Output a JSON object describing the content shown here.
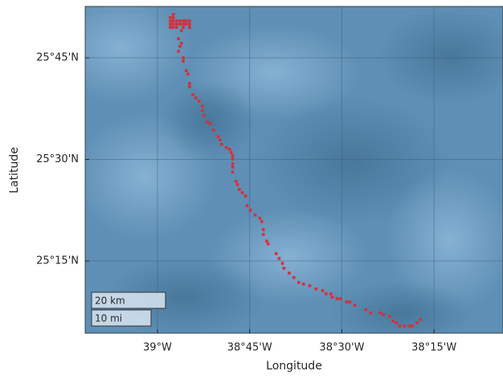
{
  "chart_data": {
    "type": "scatter",
    "xlabel": "Longitude",
    "ylabel": "Latitude",
    "xlim": [
      -39.196,
      -38.063
    ],
    "ylim": [
      25.072,
      25.8765
    ],
    "xticks": [
      {
        "value": -39,
        "label": "39°W"
      },
      {
        "value": -38.75,
        "label": "38°45'W"
      },
      {
        "value": -38.5,
        "label": "38°30'W"
      },
      {
        "value": -38.25,
        "label": "38°15'W"
      }
    ],
    "yticks": [
      {
        "value": 25.25,
        "label": "25°15'N"
      },
      {
        "value": 25.5,
        "label": "25°30'N"
      },
      {
        "value": 25.75,
        "label": "25°45'N"
      }
    ],
    "grid": true,
    "color": "#d62f3a",
    "scalebar": [
      "20 km",
      "10 mi"
    ],
    "x": [
      -38.957,
      -38.965,
      -38.957,
      -38.965,
      -38.957,
      -38.948,
      -38.939,
      -38.93,
      -38.922,
      -38.913,
      -38.965,
      -38.957,
      -38.948,
      -38.939,
      -38.93,
      -38.922,
      -38.913,
      -38.965,
      -38.957,
      -38.948,
      -38.93,
      -38.913,
      -38.935,
      -38.943,
      -38.935,
      -38.939,
      -38.943,
      -38.93,
      -38.93,
      -38.922,
      -38.917,
      -38.913,
      -38.913,
      -38.904,
      -38.896,
      -38.887,
      -38.878,
      -38.878,
      -38.874,
      -38.865,
      -38.857,
      -38.848,
      -38.835,
      -38.83,
      -38.826,
      -38.813,
      -38.804,
      -38.8,
      -38.796,
      -38.796,
      -38.796,
      -38.796,
      -38.796,
      -38.787,
      -38.783,
      -38.778,
      -38.77,
      -38.761,
      -38.757,
      -38.748,
      -38.735,
      -38.722,
      -38.717,
      -38.713,
      -38.713,
      -38.704,
      -38.7,
      -38.678,
      -38.67,
      -38.661,
      -38.657,
      -38.643,
      -38.63,
      -38.617,
      -38.604,
      -38.587,
      -38.57,
      -38.552,
      -38.543,
      -38.53,
      -38.526,
      -38.513,
      -38.504,
      -38.487,
      -38.478,
      -38.465,
      -38.435,
      -38.422,
      -38.396,
      -38.387,
      -38.37,
      -38.361,
      -38.352,
      -38.343,
      -38.33,
      -38.317,
      -38.309,
      -38.296,
      -38.287
    ],
    "y": [
      25.857,
      25.849,
      25.849,
      25.841,
      25.841,
      25.841,
      25.841,
      25.841,
      25.841,
      25.841,
      25.833,
      25.833,
      25.833,
      25.833,
      25.833,
      25.833,
      25.833,
      25.825,
      25.825,
      25.825,
      25.825,
      25.825,
      25.817,
      25.797,
      25.786,
      25.778,
      25.766,
      25.75,
      25.742,
      25.718,
      25.71,
      25.687,
      25.679,
      25.659,
      25.651,
      25.643,
      25.631,
      25.62,
      25.608,
      25.592,
      25.588,
      25.572,
      25.556,
      25.548,
      25.537,
      25.529,
      25.525,
      25.517,
      25.509,
      25.501,
      25.489,
      25.481,
      25.469,
      25.446,
      25.438,
      25.426,
      25.418,
      25.41,
      25.386,
      25.375,
      25.363,
      25.355,
      25.347,
      25.327,
      25.315,
      25.299,
      25.292,
      25.268,
      25.256,
      25.244,
      25.232,
      25.22,
      25.209,
      25.197,
      25.193,
      25.189,
      25.181,
      25.177,
      25.169,
      25.169,
      25.161,
      25.157,
      25.157,
      25.149,
      25.149,
      25.141,
      25.13,
      25.122,
      25.122,
      25.118,
      25.114,
      25.102,
      25.098,
      25.09,
      25.09,
      25.09,
      25.09,
      25.098,
      25.106
    ]
  }
}
